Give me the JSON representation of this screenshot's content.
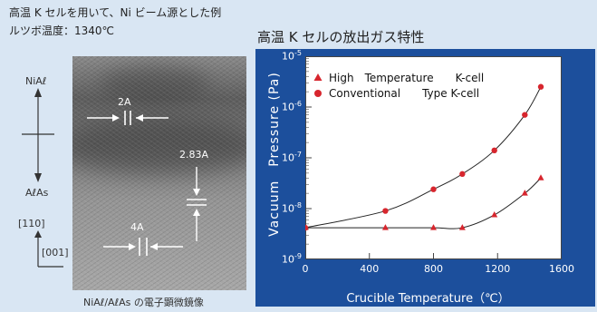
{
  "left_caption": {
    "line1": "高温 K セルを用いて、Ni ビーム源とした例",
    "line2": "ルツボ温度：1340℃"
  },
  "micrograph": {
    "top_label": "NiAℓ",
    "bottom_label": "AℓAs",
    "spacing_2a": "2A",
    "spacing_283a": "2.83A",
    "spacing_4a": "4A",
    "dir_110": "[110]",
    "dir_001": "[001]",
    "caption": "NiAℓ/AℓAs の電子顕微鏡像"
  },
  "chart_title": "高温 K セルの放出ガス特性",
  "chart_data": {
    "type": "line",
    "title": "高温 K セルの放出ガス特性",
    "xlabel": "Crucible Temperature（℃）",
    "ylabel": "Vacuum　Pressure (Pa)",
    "xlim": [
      0,
      1600
    ],
    "ylim": [
      1e-09,
      1e-05
    ],
    "yscale": "log",
    "x_ticks": [
      "0",
      "400",
      "800",
      "1200",
      "1600"
    ],
    "y_ticks": [
      {
        "base": "10",
        "exp": "-5",
        "value": 1e-05
      },
      {
        "base": "10",
        "exp": "-6",
        "value": 1e-06
      },
      {
        "base": "10",
        "exp": "-7",
        "value": 1e-07
      },
      {
        "base": "10",
        "exp": "-8",
        "value": 1e-08
      },
      {
        "base": "10",
        "exp": "-9",
        "value": 1e-09
      }
    ],
    "legend_position": "top-left",
    "series": [
      {
        "name": "High　Temperature　　K-cell",
        "marker": "triangle",
        "color": "#d7262e",
        "x": [
          0,
          500,
          800,
          980,
          1180,
          1370,
          1470
        ],
        "y": [
          4.2e-09,
          4.2e-09,
          4.2e-09,
          4.2e-09,
          7.5e-09,
          2e-08,
          4e-08
        ]
      },
      {
        "name": "Conventional　　Type K-cell",
        "marker": "circle",
        "color": "#d7262e",
        "x": [
          0,
          500,
          800,
          980,
          1180,
          1370,
          1470
        ],
        "y": [
          4.2e-09,
          9e-09,
          2.4e-08,
          4.8e-08,
          1.4e-07,
          7e-07,
          2.5e-06
        ]
      }
    ]
  }
}
